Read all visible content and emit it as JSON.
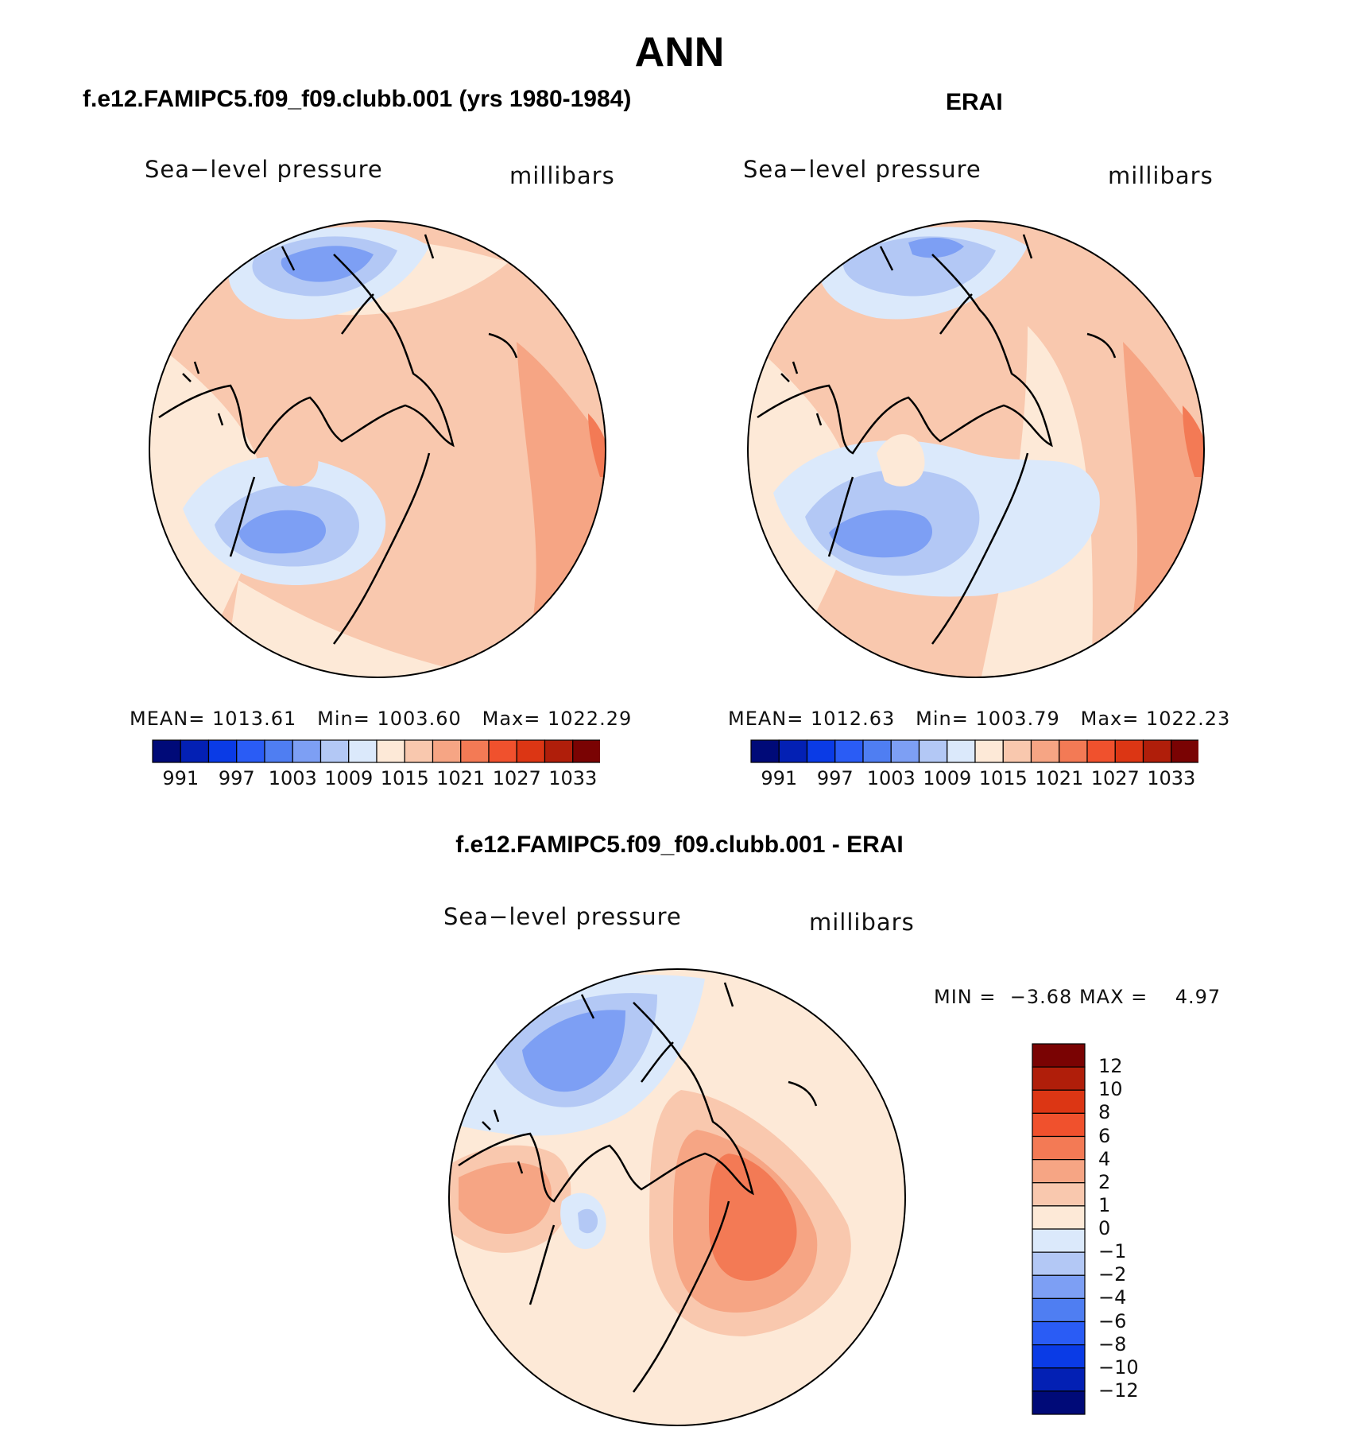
{
  "page": {
    "title": "ANN"
  },
  "palette": {
    "absolute": [
      "#000a78",
      "#0320b4",
      "#0a3be6",
      "#2a5cf5",
      "#4f7ef2",
      "#7d9ff4",
      "#b3c8f5",
      "#dbe9fb",
      "#fde9d7",
      "#f9c8ae",
      "#f6a584",
      "#f37a55",
      "#f0512d",
      "#dc3614",
      "#b01e0a",
      "#7a0303"
    ],
    "difference": [
      "#000a78",
      "#0320b4",
      "#0a3be6",
      "#2a5cf5",
      "#4f7ef2",
      "#7d9ff4",
      "#b3c8f5",
      "#dbe9fb",
      "#fde9d7",
      "#f9c8ae",
      "#f6a584",
      "#f37a55",
      "#f0512d",
      "#dc3614",
      "#b01e0a",
      "#7a0303"
    ]
  },
  "panels": [
    {
      "header": "f.e12.FAMIPC5.f09_f09.clubb.001 (yrs 1980-1984)",
      "variable": "Sea−level pressure",
      "units": "millibars",
      "stats": {
        "mean_label": "MEAN=",
        "mean": "1013.61",
        "min_label": "Min=",
        "min": "1003.60",
        "max_label": "Max=",
        "max": "1022.29"
      },
      "colorbar_labels": [
        "991",
        "997",
        "1003",
        "1009",
        "1015",
        "1021",
        "1027",
        "1033"
      ]
    },
    {
      "header": "ERAI",
      "variable": "Sea−level pressure",
      "units": "millibars",
      "stats": {
        "mean_label": "MEAN=",
        "mean": "1012.63",
        "min_label": "Min=",
        "min": "1003.79",
        "max_label": "Max=",
        "max": "1022.23"
      },
      "colorbar_labels": [
        "991",
        "997",
        "1003",
        "1009",
        "1015",
        "1021",
        "1027",
        "1033"
      ]
    }
  ],
  "difference": {
    "header": "f.e12.FAMIPC5.f09_f09.clubb.001 - ERAI",
    "variable": "Sea−level pressure",
    "units": "millibars",
    "stats": {
      "min_label": "MIN =",
      "min": "−3.68",
      "max_label": "MAX =",
      "max": "4.97"
    },
    "colorbar_labels": [
      "12",
      "10",
      "8",
      "6",
      "4",
      "2",
      "1",
      "0",
      "−1",
      "−2",
      "−4",
      "−6",
      "−8",
      "−10",
      "−12"
    ]
  }
}
